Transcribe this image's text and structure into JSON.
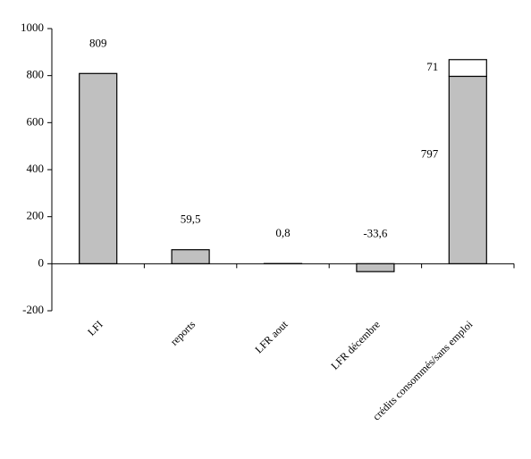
{
  "chart_data": {
    "type": "bar",
    "stacked": true,
    "categories": [
      "LFI",
      "reports",
      "LFR aout",
      "LFR décembre",
      "crédits consommés/sans emploi"
    ],
    "series": [
      {
        "color": "#c0c0c0",
        "values": [
          809,
          59.5,
          0.8,
          -33.6,
          797
        ],
        "value_labels": [
          "809",
          "59,5",
          "0,8",
          "-33,6",
          "797"
        ]
      },
      {
        "color": "#ffffff",
        "values": [
          null,
          null,
          null,
          null,
          71
        ],
        "value_labels": [
          null,
          null,
          null,
          null,
          "71"
        ]
      }
    ],
    "ylim": [
      -200,
      1000
    ],
    "yticks": [
      -200,
      0,
      200,
      400,
      600,
      800,
      1000
    ],
    "grid": false
  }
}
